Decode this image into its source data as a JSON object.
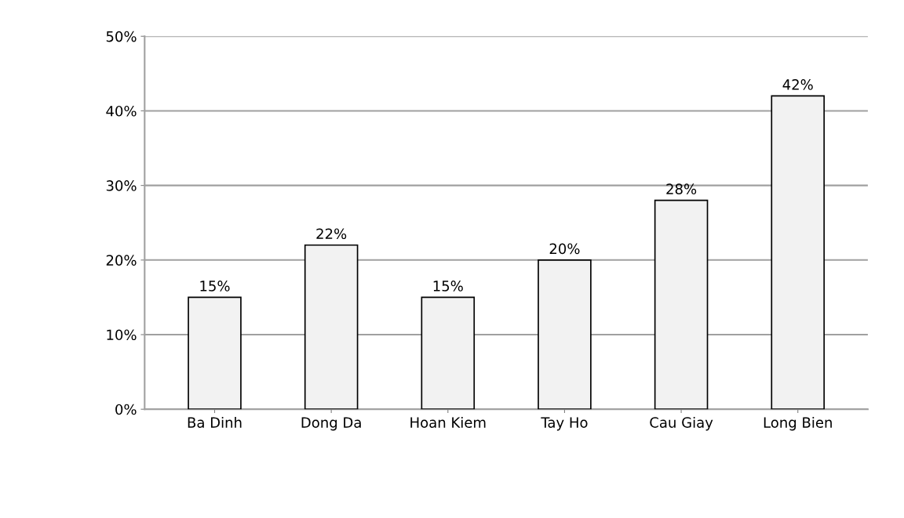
{
  "chart_data": {
    "type": "bar",
    "categories": [
      "Ba Dinh",
      "Dong Da",
      "Hoan Kiem",
      "Tay Ho",
      "Cau Giay",
      "Long Bien"
    ],
    "values": [
      15,
      22,
      15,
      20,
      28,
      42
    ],
    "value_labels": [
      "15%",
      "22%",
      "15%",
      "20%",
      "28%",
      "42%"
    ],
    "color": "#f2f2f2",
    "ylim": [
      0,
      50
    ],
    "yticks": [
      {
        "value": 0,
        "label": "0%"
      },
      {
        "value": 10,
        "label": "10%"
      },
      {
        "value": 20,
        "label": "20%"
      },
      {
        "value": 30,
        "label": "30%"
      },
      {
        "value": 40,
        "label": "40%"
      },
      {
        "value": 50,
        "label": "50%"
      }
    ],
    "grid": "y"
  }
}
